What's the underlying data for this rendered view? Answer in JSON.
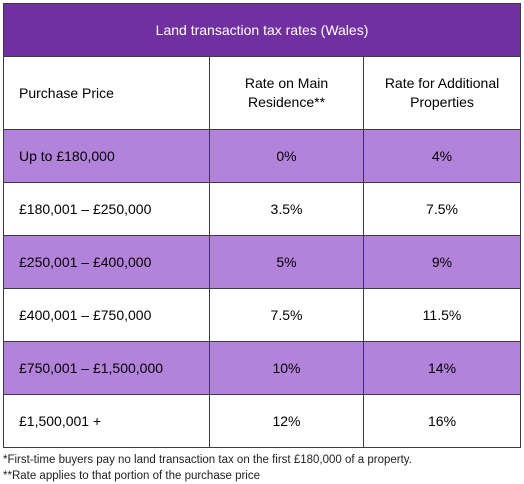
{
  "table": {
    "title": "Land transaction tax rates (Wales)",
    "headers": {
      "col1": "Purchase Price",
      "col2_line1": "Rate on Main",
      "col2_line2": "Residence**",
      "col3_line1": "Rate for Additional",
      "col3_line2": "Properties"
    },
    "rows": [
      {
        "price": "Up to £180,000",
        "main": "0%",
        "additional": "4%"
      },
      {
        "price": "£180,001 – £250,000",
        "main": "3.5%",
        "additional": "7.5%"
      },
      {
        "price": "£250,001 – £400,000",
        "main": "5%",
        "additional": "9%"
      },
      {
        "price": "£400,001 – £750,000",
        "main": "7.5%",
        "additional": "11.5%"
      },
      {
        "price": "£750,001 – £1,500,000",
        "main": "10%",
        "additional": "14%"
      },
      {
        "price": "£1,500,001 +",
        "main": "12%",
        "additional": "16%"
      }
    ]
  },
  "footnotes": {
    "note1": "*First-time buyers pay no land transaction tax on the first £180,000 of a property.",
    "note2": "**Rate applies to that portion of the purchase price"
  },
  "colors": {
    "header_purple": "#7030a0",
    "row_shade": "#b383db"
  }
}
